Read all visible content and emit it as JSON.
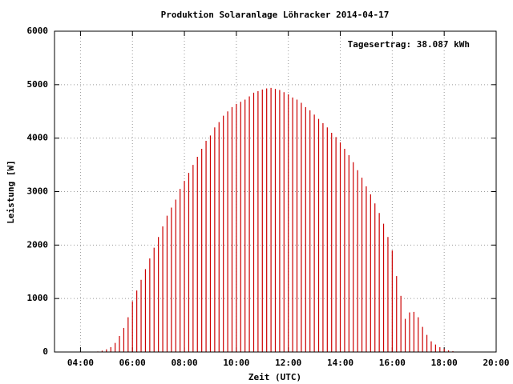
{
  "chart_data": {
    "type": "impulse",
    "title": "Produktion Solaranlage Löhracker 2014-04-17",
    "annotation": "Tagesertrag: 38.087 kWh",
    "x_label": "Zeit (UTC)",
    "y_label": "Leistung [W]",
    "x": [
      "04:30",
      "04:40",
      "04:50",
      "05:00",
      "05:10",
      "05:20",
      "05:30",
      "05:40",
      "05:50",
      "06:00",
      "06:10",
      "06:20",
      "06:30",
      "06:40",
      "06:50",
      "07:00",
      "07:10",
      "07:20",
      "07:30",
      "07:40",
      "07:50",
      "08:00",
      "08:10",
      "08:20",
      "08:30",
      "08:40",
      "08:50",
      "09:00",
      "09:10",
      "09:20",
      "09:30",
      "09:40",
      "09:50",
      "10:00",
      "10:10",
      "10:20",
      "10:30",
      "10:40",
      "10:50",
      "11:00",
      "11:10",
      "11:20",
      "11:30",
      "11:40",
      "11:50",
      "12:00",
      "12:10",
      "12:20",
      "12:30",
      "12:40",
      "12:50",
      "13:00",
      "13:10",
      "13:20",
      "13:30",
      "13:40",
      "13:50",
      "14:00",
      "14:10",
      "14:20",
      "14:30",
      "14:40",
      "14:50",
      "15:00",
      "15:10",
      "15:20",
      "15:30",
      "15:40",
      "15:50",
      "16:00",
      "16:10",
      "16:20",
      "16:30",
      "16:40",
      "16:50",
      "17:00",
      "17:10",
      "17:20",
      "17:30",
      "17:40",
      "17:50",
      "18:00",
      "18:10",
      "18:20",
      "18:30"
    ],
    "series": [
      {
        "name": "Leistung",
        "color": "#cc0000",
        "values": [
          5,
          10,
          25,
          50,
          90,
          170,
          300,
          450,
          650,
          950,
          1150,
          1350,
          1550,
          1750,
          1950,
          2150,
          2350,
          2550,
          2700,
          2850,
          3050,
          3200,
          3350,
          3500,
          3650,
          3800,
          3950,
          4050,
          4200,
          4300,
          4420,
          4500,
          4580,
          4640,
          4680,
          4720,
          4780,
          4850,
          4880,
          4910,
          4930,
          4940,
          4920,
          4900,
          4860,
          4820,
          4760,
          4720,
          4660,
          4580,
          4520,
          4440,
          4360,
          4280,
          4200,
          4100,
          4020,
          3920,
          3800,
          3680,
          3550,
          3400,
          3260,
          3100,
          2950,
          2780,
          2600,
          2400,
          2150,
          1900,
          1420,
          1050,
          620,
          740,
          750,
          650,
          470,
          320,
          200,
          140,
          90,
          60,
          30,
          15,
          5
        ]
      }
    ],
    "xlim": [
      "03:00",
      "20:00"
    ],
    "xticks": [
      "04:00",
      "06:00",
      "08:00",
      "10:00",
      "12:00",
      "14:00",
      "16:00",
      "18:00",
      "20:00"
    ],
    "ylim": [
      0,
      6000
    ],
    "yticks": [
      0,
      1000,
      2000,
      3000,
      4000,
      5000,
      6000
    ],
    "grid": true
  }
}
